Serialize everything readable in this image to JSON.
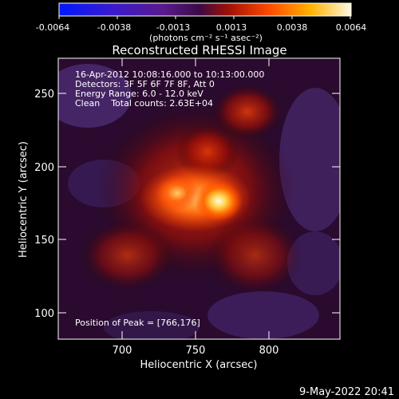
{
  "colorbar": {
    "ticks": [
      "-0.0064",
      "-0.0038",
      "-0.0013",
      "0.0013",
      "0.0038",
      "0.0064"
    ],
    "units": "(photons cm⁻² s⁻¹ asec⁻²)"
  },
  "title": "Reconstructed RHESSI Image",
  "info": {
    "time": "16-Apr-2012 10:08:16.000 to 10:13:00.000",
    "detectors": "Detectors: 3F 5F 6F 7F 8F, Att 0",
    "energy": "Energy Range: 6.0 - 12.0 keV",
    "clean_counts": "Clean    Total counts: 2.63E+04",
    "peak": "Position of Peak = [766,176]"
  },
  "axes": {
    "xlabel": "Heliocentric X (arcsec)",
    "ylabel": "Heliocentric Y (arcsec)",
    "xticks": [
      "700",
      "750",
      "800"
    ],
    "yticks": [
      "250",
      "200",
      "150",
      "100"
    ]
  },
  "footer_date": "9-May-2022 20:41"
}
